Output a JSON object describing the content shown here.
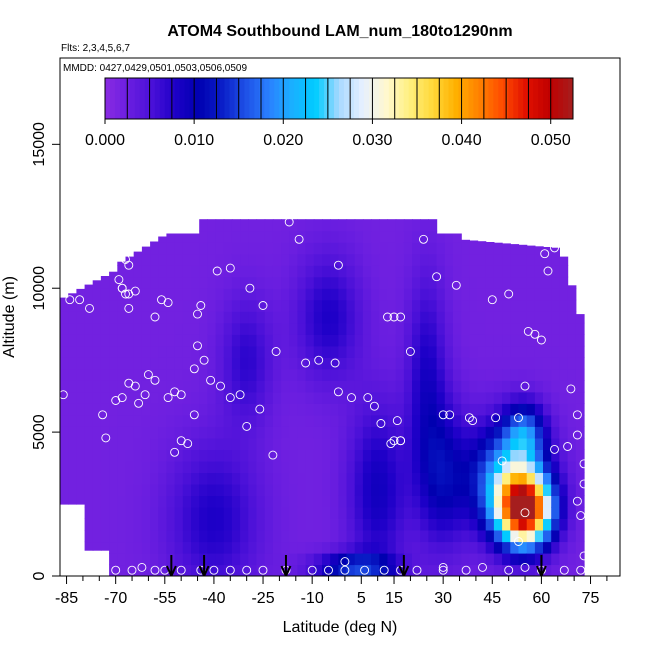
{
  "chart_data": {
    "type": "heatmap",
    "title": "ATOM4 Southbound LAM_num_180to1290nm",
    "subtitle_flights": "Flts: 2,3,4,5,6,7",
    "subtitle_dates": "MMDD: 0427,0429,0501,0503,0506,0509",
    "xlabel": "Latitude (deg N)",
    "ylabel": "Altitude (m)",
    "xlim": [
      -87,
      84
    ],
    "ylim": [
      0,
      18000
    ],
    "x_ticks": [
      -85,
      -70,
      -55,
      -40,
      -25,
      -10,
      5,
      15,
      30,
      45,
      60,
      75
    ],
    "x_minor_ticks": [
      -80,
      -75,
      -65,
      -60,
      -50,
      -45,
      -35,
      -30,
      -20,
      -15,
      -5,
      0,
      10,
      20,
      25,
      35,
      40,
      50,
      55,
      65,
      70,
      80
    ],
    "y_ticks": [
      0,
      5000,
      10000,
      15000
    ],
    "colorbar": {
      "ticks": [
        "0.000",
        "0.010",
        "0.020",
        "0.030",
        "0.040",
        "0.050"
      ],
      "tick_values": [
        0,
        0.01,
        0.02,
        0.03,
        0.04,
        0.05
      ],
      "range": [
        0,
        0.0525
      ],
      "colors": [
        "#8a2be2",
        "#6a1ee0",
        "#4a10d8",
        "#1e00c8",
        "#0000b0",
        "#0a1ec8",
        "#1e50e6",
        "#2a80ff",
        "#1ab0ff",
        "#00ccff",
        "#a8d8ff",
        "#e6f0ff",
        "#fff8d0",
        "#fff080",
        "#ffd83a",
        "#ffb000",
        "#ff8000",
        "#ff4a00",
        "#e01000",
        "#c00000",
        "#a51e1e"
      ]
    },
    "regions": [
      {
        "name": "background",
        "level": 0.002
      },
      {
        "name": "southern-blue-band",
        "level": 0.008
      },
      {
        "name": "mid-upper-blue-wedge",
        "level": 0.007
      },
      {
        "name": "tropical-blue-column",
        "level": 0.009
      },
      {
        "name": "northern-lowlevel-plume",
        "level": 0.052,
        "lat_center": 55,
        "alt_center": 2300
      }
    ],
    "markers": {
      "arrow_latitudes": [
        -53,
        -43,
        -18,
        18,
        60
      ]
    },
    "observations": [
      [
        -86,
        6300
      ],
      [
        -84,
        9600
      ],
      [
        -81,
        9600
      ],
      [
        -78,
        9300
      ],
      [
        -74,
        5600
      ],
      [
        -73,
        4800
      ],
      [
        -74,
        200
      ],
      [
        -69,
        10300
      ],
      [
        -68,
        10000
      ],
      [
        -67,
        9800
      ],
      [
        -66,
        9800
      ],
      [
        -64,
        9900
      ],
      [
        -68,
        10000
      ],
      [
        -67,
        11000
      ],
      [
        -65,
        11500
      ],
      [
        -66,
        10800
      ],
      [
        -62,
        11700
      ],
      [
        -60,
        11800
      ],
      [
        -56,
        9600
      ],
      [
        -54,
        9500
      ],
      [
        -58,
        9000
      ],
      [
        -66,
        9300
      ],
      [
        -70,
        6100
      ],
      [
        -68,
        6200
      ],
      [
        -66,
        6700
      ],
      [
        -64,
        6600
      ],
      [
        -63,
        6000
      ],
      [
        -61,
        6300
      ],
      [
        -60,
        7000
      ],
      [
        -58,
        6800
      ],
      [
        -54,
        6200
      ],
      [
        -52,
        6400
      ],
      [
        -50,
        6300
      ],
      [
        -52,
        4300
      ],
      [
        -50,
        4700
      ],
      [
        -48,
        4600
      ],
      [
        -46,
        5600
      ],
      [
        -45,
        8000
      ],
      [
        -46,
        7200
      ],
      [
        -43,
        7500
      ],
      [
        -41,
        6800
      ],
      [
        -38,
        6600
      ],
      [
        -35,
        6200
      ],
      [
        -32,
        6300
      ],
      [
        -30,
        5200
      ],
      [
        -26,
        5800
      ],
      [
        -22,
        4200
      ],
      [
        -21,
        7800
      ],
      [
        -45,
        9100
      ],
      [
        -44,
        9400
      ],
      [
        -39,
        10600
      ],
      [
        -35,
        10700
      ],
      [
        -29,
        10000
      ],
      [
        -25,
        9400
      ],
      [
        -17,
        12300
      ],
      [
        -14,
        11700
      ],
      [
        -12,
        7400
      ],
      [
        -8,
        7500
      ],
      [
        -2,
        10800
      ],
      [
        -3,
        7400
      ],
      [
        -2,
        6400
      ],
      [
        2,
        6200
      ],
      [
        7,
        6200
      ],
      [
        9,
        5900
      ],
      [
        11,
        5300
      ],
      [
        13,
        9000
      ],
      [
        15,
        9000
      ],
      [
        17,
        9000
      ],
      [
        16,
        5400
      ],
      [
        17,
        4700
      ],
      [
        15,
        4700
      ],
      [
        20,
        7800
      ],
      [
        14,
        4600
      ],
      [
        17,
        4700
      ],
      [
        24,
        11700
      ],
      [
        28,
        10400
      ],
      [
        30,
        5600
      ],
      [
        32,
        5600
      ],
      [
        34,
        10100
      ],
      [
        38,
        5500
      ],
      [
        39,
        5400
      ],
      [
        46,
        5500
      ],
      [
        45,
        9600
      ],
      [
        50,
        9800
      ],
      [
        53,
        5500
      ],
      [
        55,
        6600
      ],
      [
        56,
        8500
      ],
      [
        58,
        8400
      ],
      [
        60,
        8200
      ],
      [
        61,
        11200
      ],
      [
        62,
        10600
      ],
      [
        64,
        11400
      ],
      [
        64,
        4400
      ],
      [
        68,
        4500
      ],
      [
        69,
        6500
      ],
      [
        71,
        5600
      ],
      [
        71,
        4900
      ],
      [
        73,
        3900
      ],
      [
        73,
        3200
      ],
      [
        71,
        2600
      ],
      [
        72,
        2100
      ],
      [
        73,
        700
      ],
      [
        72,
        200
      ],
      [
        67,
        200
      ],
      [
        53,
        1200
      ],
      [
        55,
        2200
      ],
      [
        48,
        4000
      ],
      [
        -70,
        200
      ],
      [
        -65,
        200
      ],
      [
        -62,
        300
      ],
      [
        -58,
        200
      ],
      [
        -55,
        200
      ],
      [
        -50,
        200
      ],
      [
        -44,
        200
      ],
      [
        -40,
        200
      ],
      [
        -35,
        200
      ],
      [
        -30,
        200
      ],
      [
        -25,
        200
      ],
      [
        -18,
        200
      ],
      [
        -10,
        200
      ],
      [
        -5,
        200
      ],
      [
        0,
        500
      ],
      [
        0,
        200
      ],
      [
        6,
        200
      ],
      [
        12,
        200
      ],
      [
        17,
        200
      ],
      [
        22,
        200
      ],
      [
        30,
        300
      ],
      [
        30,
        200
      ],
      [
        37,
        200
      ],
      [
        42,
        300
      ],
      [
        50,
        200
      ],
      [
        55,
        300
      ],
      [
        60,
        200
      ]
    ]
  }
}
